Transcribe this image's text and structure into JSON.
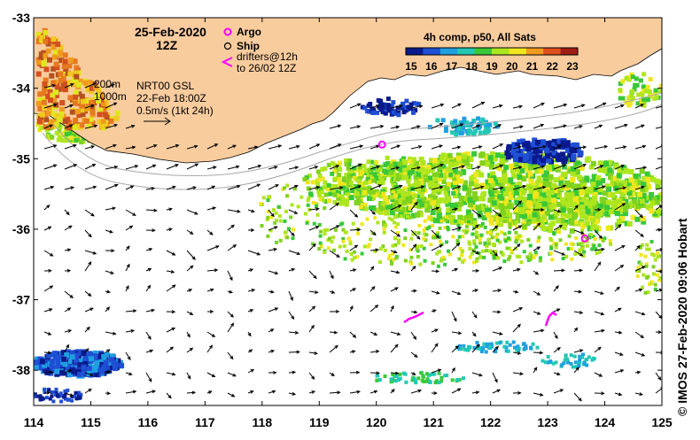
{
  "map": {
    "date_title": "25-Feb-2020",
    "time_title": "12Z",
    "legend": {
      "argo": "Argo",
      "ship": "Ship",
      "drifters_line1": "drifters@12h",
      "drifters_line2": "to 26/02 12Z"
    },
    "colorbar": {
      "title": "4h comp, p50, All Sats",
      "ticks": [
        "15",
        "16",
        "17",
        "18",
        "19",
        "20",
        "21",
        "22",
        "23"
      ],
      "colors": [
        "#0a1a8c",
        "#1f4fd4",
        "#1ea0e0",
        "#22c8b4",
        "#38c838",
        "#aee61e",
        "#f0e61e",
        "#f09a1e",
        "#e0501e",
        "#a01e14"
      ]
    },
    "isobaths": {
      "label_200": "200m",
      "label_1000": "1000m"
    },
    "vector_info": {
      "line1": "NRT00 GSL",
      "line2": "22-Feb 18:00Z",
      "line3": "0.5m/s (1kt 24h)"
    },
    "axes": {
      "x_ticks": [
        "114",
        "115",
        "116",
        "117",
        "118",
        "119",
        "120",
        "121",
        "122",
        "123",
        "124",
        "125"
      ],
      "y_ticks": [
        "-33",
        "-34",
        "-35",
        "-36",
        "-37",
        "-38"
      ],
      "x_range": [
        114,
        125
      ],
      "y_range": [
        -38.5,
        -33
      ]
    },
    "land_color": "#f9cc9e",
    "argo_color": "#ff00ff",
    "argo_floats": [
      [
        120.1,
        -34.8
      ],
      [
        123.65,
        -36.13
      ]
    ],
    "credit": "© IMOS 27-Feb-2020 09:06 Hobart"
  }
}
